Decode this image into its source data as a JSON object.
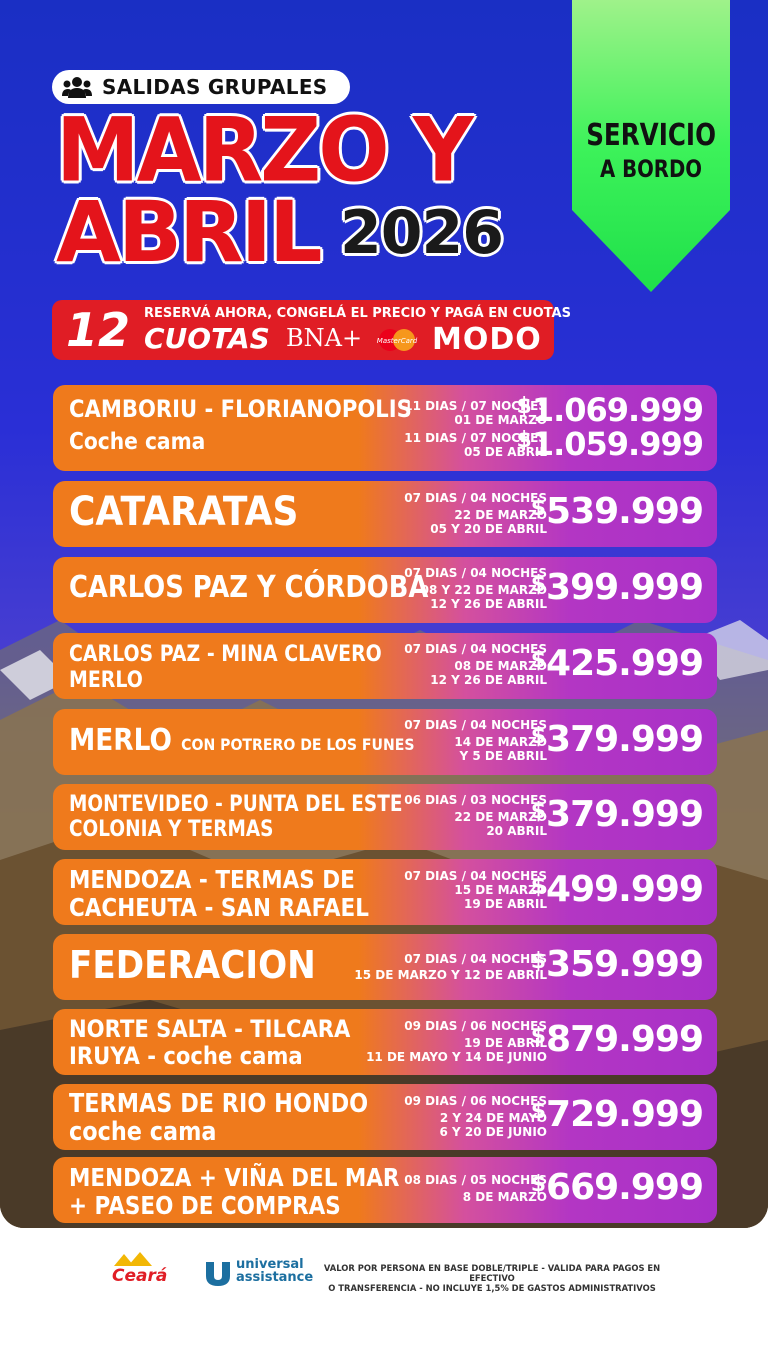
{
  "header": {
    "badge": "SALIDAS GRUPALES",
    "title_line1": "MARZO Y",
    "title_line2": "ABRIL",
    "year": "2026",
    "ribbon_line1": "SERVICIO",
    "ribbon_line2": "A BORDO"
  },
  "cuotas": {
    "number": "12",
    "word": "CUOTAS",
    "tagline": "RESERVÁ AHORA, CONGELÁ EL PRECIO Y PAGÁ EN CUOTAS",
    "bna": "BNA+",
    "mastercard": "MasterCard",
    "modo": "MODO"
  },
  "colors": {
    "brand_red": "#e01d25",
    "row_orange": "#ef7a1c",
    "row_purple": "#a830c8",
    "ribbon_green": "#3df25a",
    "background_blue": "#2a2fd6"
  },
  "trips": [
    {
      "dest1": "CAMBORIU  - FLORIANOPOLIS",
      "dest2": "Coche cama",
      "info1a": "11 DIAS / 07 NOCHES",
      "info1b": "01 DE MARZO",
      "price1": "1.069.999",
      "info2a": "11 DIAS / 07 NOCHES",
      "info2b": "05 DE ABRIL",
      "price2": "1.059.999"
    },
    {
      "dest1": "CATARATAS",
      "info1": "07 DIAS / 04 NOCHES",
      "info2": "22 DE MARZO",
      "info3": "05 Y 20 DE ABRIL",
      "price": "539.999"
    },
    {
      "dest1": "CARLOS PAZ Y CÓRDOBA",
      "info1": "07 DIAS / 04 NOCHES",
      "info2": "08 Y 22 DE MARZO",
      "info3": "12 Y 26 DE ABRIL",
      "price": "399.999"
    },
    {
      "dest1": "CARLOS PAZ - MINA CLAVERO",
      "dest2": "MERLO",
      "info1": "07 DIAS / 04 NOCHES",
      "info2": "08 DE MARZO",
      "info3": "12 Y 26 DE ABRIL",
      "price": "425.999"
    },
    {
      "dest1": "MERLO",
      "dest_small": "CON POTRERO DE LOS FUNES",
      "info1": "07 DIAS / 04 NOCHES",
      "info2": "14 DE MARZO",
      "info3": "Y 5 DE ABRIL",
      "price": "379.999"
    },
    {
      "dest1": "MONTEVIDEO - PUNTA DEL ESTE",
      "dest2": "COLONIA Y TERMAS",
      "info1": "06 DIAS / 03 NOCHES",
      "info2": "22 DE MARZO",
      "info3": "20 ABRIL",
      "price": "379.999"
    },
    {
      "dest1": "MENDOZA - TERMAS DE",
      "dest2": "CACHEUTA - SAN RAFAEL",
      "info1": "07 DIAS / 04 NOCHES",
      "info2": "15 DE MARZO",
      "info3": "19 DE ABRIL",
      "price": "499.999"
    },
    {
      "dest1": "FEDERACION",
      "info1": "07 DIAS / 04 NOCHES",
      "info2": "15 DE MARZO Y 12 DE ABRIL",
      "price": "359.999"
    },
    {
      "dest1": "NORTE SALTA -  TILCARA",
      "dest2": "IRUYA - coche cama",
      "info1": "09 DIAS / 06 NOCHES",
      "info2": "19 DE ABRIL",
      "info3": "11 DE MAYO Y 14 DE JUNIO",
      "price": "879.999"
    },
    {
      "dest1": "TERMAS DE RIO HONDO",
      "dest2": "coche cama",
      "info1": "09 DIAS / 06 NOCHES",
      "info2": "2 Y 24 DE MAYO",
      "info3": "6 Y 20 DE JUNIO",
      "price": "729.999"
    },
    {
      "dest1": "MENDOZA + VIÑA DEL MAR",
      "dest2": "+ PASEO DE COMPRAS",
      "info1": "08 DIAS / 05 NOCHES",
      "info2": "8 DE MARZO",
      "price": "669.999"
    }
  ],
  "currency": "$",
  "footer": {
    "ceara": "Ceará",
    "ua_line1": "universal",
    "ua_line2": "assistance",
    "legal1": "VALOR POR PERSONA EN BASE DOBLE/TRIPLE - VALIDA PARA PAGOS EN EFECTIVO",
    "legal2": "O TRANSFERENCIA - NO INCLUYE 1,5% DE GASTOS ADMINISTRATIVOS"
  }
}
